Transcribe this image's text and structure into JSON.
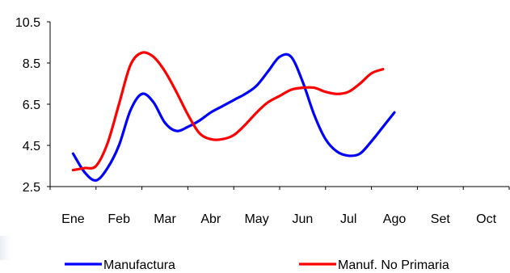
{
  "chart_data": {
    "type": "line",
    "categories": [
      "Ene",
      "Feb",
      "Mar",
      "Abr",
      "May",
      "Jun",
      "Jul",
      "Ago",
      "Set",
      "Oct"
    ],
    "x": [
      1,
      1.25,
      1.5,
      1.75,
      2,
      2.25,
      2.5,
      2.75,
      3,
      3.25,
      3.5,
      3.75,
      4,
      4.25,
      4.5,
      4.75,
      5,
      5.25,
      5.5,
      5.75,
      6,
      6.25,
      6.5,
      6.75,
      7,
      7.25,
      7.5,
      7.75,
      8,
      8.25,
      8.5,
      8.75,
      9,
      9.25,
      9.5,
      9.75,
      10
    ],
    "series": [
      {
        "name": "Manufactura",
        "color": "#0000ff",
        "values": [
          4.1,
          3.2,
          2.8,
          3.4,
          4.5,
          6.2,
          7.0,
          6.6,
          5.6,
          5.2,
          5.4,
          5.7,
          6.1,
          6.4,
          6.7,
          7.0,
          7.4,
          8.1,
          8.8,
          8.8,
          7.6,
          6.0,
          4.8,
          4.2,
          4.0,
          4.1,
          4.7,
          5.4,
          6.1,
          null,
          null,
          null,
          null,
          null,
          null,
          null,
          null
        ]
      },
      {
        "name": "Manuf. No Primaria",
        "color": "#ff0000",
        "values": [
          3.3,
          3.4,
          3.5,
          4.6,
          6.5,
          8.4,
          9.0,
          8.8,
          8.1,
          7.1,
          6.0,
          5.1,
          4.8,
          4.8,
          5.0,
          5.5,
          6.1,
          6.6,
          6.9,
          7.2,
          7.3,
          7.3,
          7.1,
          7.0,
          7.1,
          7.5,
          8.0,
          8.2,
          null,
          null,
          null,
          null,
          null,
          null,
          null,
          null,
          null
        ]
      }
    ],
    "yticks": [
      "2.5",
      "4.5",
      "6.5",
      "8.5",
      "10.5"
    ],
    "ylim": [
      2.5,
      10.5
    ],
    "grid": false,
    "legend": "bottom"
  }
}
